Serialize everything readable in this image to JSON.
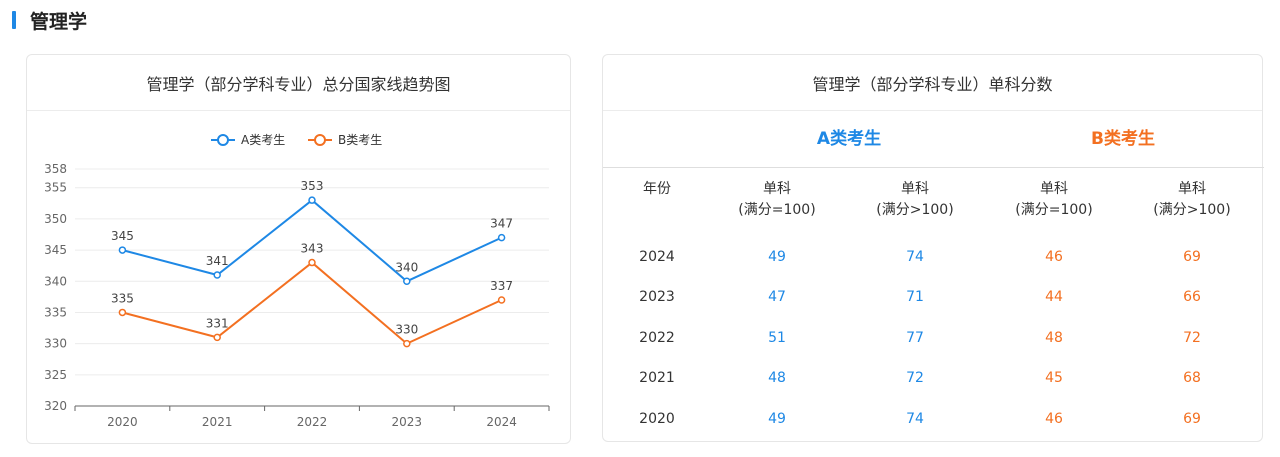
{
  "section": {
    "title": "管理学"
  },
  "colors": {
    "seriesA": "#1e88e5",
    "seriesB": "#f37021",
    "accent": "#1e88e5"
  },
  "trend": {
    "title": "管理学（部分学科专业）总分国家线趋势图",
    "legend": [
      "A类考生",
      "B类考生"
    ]
  },
  "chart_data": {
    "type": "line",
    "title": "管理学（部分学科专业）总分国家线趋势图",
    "categories": [
      "2020",
      "2021",
      "2022",
      "2023",
      "2024"
    ],
    "series": [
      {
        "name": "A类考生",
        "values": [
          345,
          341,
          353,
          340,
          347
        ]
      },
      {
        "name": "B类考生",
        "values": [
          335,
          331,
          343,
          330,
          337
        ]
      }
    ],
    "yticks": [
      320,
      325,
      330,
      335,
      340,
      345,
      350,
      355,
      358
    ],
    "ylim": [
      320,
      358
    ],
    "xlabel": "",
    "ylabel": "",
    "grid": true,
    "legend_position": "top"
  },
  "table": {
    "title": "管理学（部分学科专业）单科分数",
    "groups": [
      "A类考生",
      "B类考生"
    ],
    "year_header": "年份",
    "subject_header": "单科",
    "sub_eq": "(满分=100)",
    "sub_gt": "(满分>100)",
    "rows": [
      {
        "year": "2024",
        "a1": "49",
        "a2": "74",
        "b1": "46",
        "b2": "69"
      },
      {
        "year": "2023",
        "a1": "47",
        "a2": "71",
        "b1": "44",
        "b2": "66"
      },
      {
        "year": "2022",
        "a1": "51",
        "a2": "77",
        "b1": "48",
        "b2": "72"
      },
      {
        "year": "2021",
        "a1": "48",
        "a2": "72",
        "b1": "45",
        "b2": "68"
      },
      {
        "year": "2020",
        "a1": "49",
        "a2": "74",
        "b1": "46",
        "b2": "69"
      }
    ]
  }
}
